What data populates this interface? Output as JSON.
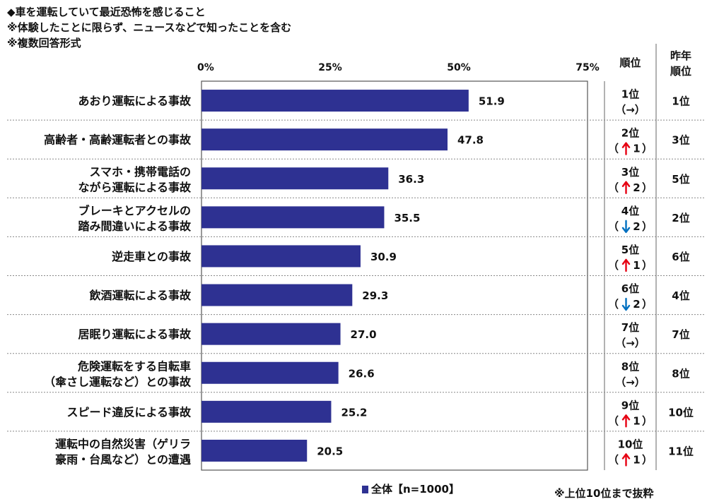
{
  "header": {
    "lines": [
      "◆車を運転していて最近恐怖を感じること",
      "※体験したことに限らず、ニュースなどで知ったことを含む",
      "※複数回答形式"
    ]
  },
  "table_headers": {
    "rank": "順位",
    "prev_rank_line1": "昨年",
    "prev_rank_line2": "順位"
  },
  "footer_note": "※上位10位まで抜粋",
  "colors": {
    "bar": "#2e3192",
    "up_arrow": "#e60012",
    "down_arrow": "#0070c0",
    "gridline": "#888888"
  },
  "chart_data": {
    "type": "bar",
    "orientation": "horizontal",
    "xlim": [
      0,
      75
    ],
    "ticks": [
      "0%",
      "25%",
      "50%",
      "75%"
    ],
    "tick_values": [
      0,
      25,
      50,
      75
    ],
    "legend": {
      "label": "全体【n=1000】",
      "position": "bottom"
    },
    "categories": [
      [
        "あおり運転による事故"
      ],
      [
        "高齢者・高齢運転者との事故"
      ],
      [
        "スマホ・携帯電話の",
        "ながら運転による事故"
      ],
      [
        "ブレーキとアクセルの",
        "踏み間違いによる事故"
      ],
      [
        "逆走車との事故"
      ],
      [
        "飲酒運転による事故"
      ],
      [
        "居眠り運転による事故"
      ],
      [
        "危険運転をする自転車",
        "（傘さし運転など）との事故"
      ],
      [
        "スピード違反による事故"
      ],
      [
        "運転中の自然災害（ゲリラ",
        "豪雨・台風など）との遭遇"
      ]
    ],
    "series": [
      {
        "name": "全体【n=1000】",
        "values": [
          51.9,
          47.8,
          36.3,
          35.5,
          30.9,
          29.3,
          27.0,
          26.6,
          25.2,
          20.5
        ],
        "labels": [
          "51.9",
          "47.8",
          "36.3",
          "35.5",
          "30.9",
          "29.3",
          "27.0",
          "26.6",
          "25.2",
          "20.5"
        ]
      }
    ],
    "ranks": [
      {
        "rank": "1位",
        "change": "→",
        "dir": "same",
        "prev": "1位"
      },
      {
        "rank": "2位",
        "change": "1",
        "dir": "up",
        "prev": "3位"
      },
      {
        "rank": "3位",
        "change": "2",
        "dir": "up",
        "prev": "5位"
      },
      {
        "rank": "4位",
        "change": "2",
        "dir": "down",
        "prev": "2位"
      },
      {
        "rank": "5位",
        "change": "1",
        "dir": "up",
        "prev": "6位"
      },
      {
        "rank": "6位",
        "change": "2",
        "dir": "down",
        "prev": "4位"
      },
      {
        "rank": "7位",
        "change": "→",
        "dir": "same",
        "prev": "7位"
      },
      {
        "rank": "8位",
        "change": "→",
        "dir": "same",
        "prev": "8位"
      },
      {
        "rank": "9位",
        "change": "1",
        "dir": "up",
        "prev": "10位"
      },
      {
        "rank": "10位",
        "change": "1",
        "dir": "up",
        "prev": "11位"
      }
    ]
  }
}
